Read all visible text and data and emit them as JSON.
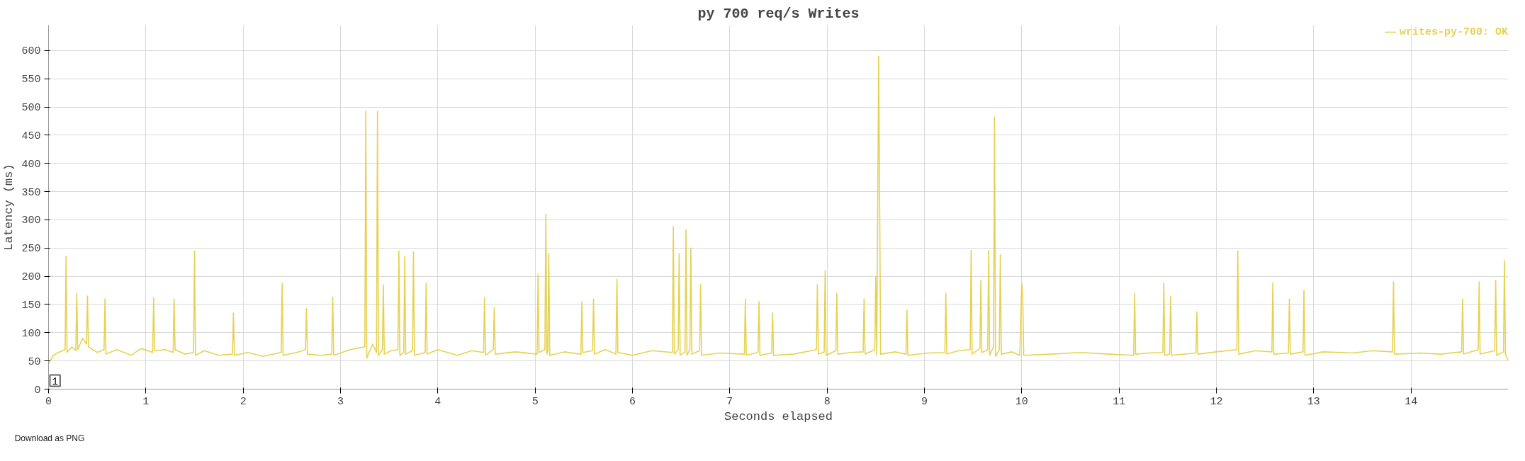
{
  "chart_data": {
    "type": "line",
    "title": "py 700 req/s Writes",
    "xlabel": "Seconds elapsed",
    "ylabel": "Latency (ms)",
    "xlim": [
      0,
      15
    ],
    "ylim": [
      0,
      645
    ],
    "xticks": [
      0,
      1,
      2,
      3,
      4,
      5,
      6,
      7,
      8,
      9,
      10,
      11,
      12,
      13,
      14
    ],
    "yticks": [
      0,
      50,
      100,
      150,
      200,
      250,
      300,
      350,
      400,
      450,
      500,
      550,
      600
    ],
    "grid": true,
    "legend": "top right",
    "line_style": "solid",
    "annotations": [
      "Download as PNG",
      "1"
    ],
    "series": [
      {
        "name": "writes-py-700: OK",
        "color": "#e6d252",
        "x": [
          0,
          0.05,
          0.1,
          0.17,
          0.18,
          0.19,
          0.24,
          0.28,
          0.29,
          0.3,
          0.35,
          0.39,
          0.4,
          0.41,
          0.5,
          0.57,
          0.58,
          0.59,
          0.7,
          0.85,
          0.95,
          1.07,
          1.08,
          1.09,
          1.2,
          1.28,
          1.29,
          1.3,
          1.4,
          1.49,
          1.5,
          1.51,
          1.6,
          1.75,
          1.89,
          1.9,
          1.91,
          2.05,
          2.2,
          2.39,
          2.4,
          2.41,
          2.55,
          2.64,
          2.65,
          2.66,
          2.8,
          2.91,
          2.92,
          2.93,
          3.1,
          3.25,
          3.26,
          3.27,
          3.33,
          3.37,
          3.38,
          3.39,
          3.43,
          3.44,
          3.45,
          3.52,
          3.59,
          3.6,
          3.61,
          3.65,
          3.66,
          3.67,
          3.74,
          3.75,
          3.76,
          3.87,
          3.88,
          3.89,
          4.0,
          4.2,
          4.35,
          4.47,
          4.48,
          4.49,
          4.57,
          4.58,
          4.59,
          4.8,
          5.02,
          5.03,
          5.04,
          5.1,
          5.11,
          5.12,
          5.13,
          5.14,
          5.15,
          5.3,
          5.47,
          5.48,
          5.49,
          5.59,
          5.6,
          5.61,
          5.72,
          5.83,
          5.84,
          5.85,
          6.0,
          6.2,
          6.41,
          6.42,
          6.43,
          6.47,
          6.48,
          6.49,
          6.54,
          6.55,
          6.56,
          6.59,
          6.6,
          6.61,
          6.69,
          6.7,
          6.71,
          6.9,
          7.15,
          7.16,
          7.17,
          7.29,
          7.3,
          7.31,
          7.43,
          7.44,
          7.45,
          7.65,
          7.89,
          7.9,
          7.91,
          7.97,
          7.98,
          7.99,
          8.09,
          8.1,
          8.11,
          8.25,
          8.37,
          8.38,
          8.39,
          8.49,
          8.5,
          8.51,
          8.53,
          8.55,
          8.7,
          8.81,
          8.82,
          8.83,
          9.05,
          9.21,
          9.22,
          9.23,
          9.35,
          9.47,
          9.48,
          9.49,
          9.57,
          9.58,
          9.59,
          9.65,
          9.66,
          9.67,
          9.71,
          9.72,
          9.73,
          9.77,
          9.78,
          9.79,
          9.9,
          9.98,
          10.0,
          10.01,
          10.02,
          10.3,
          10.6,
          10.9,
          11.15,
          11.16,
          11.17,
          11.3,
          11.45,
          11.46,
          11.47,
          11.52,
          11.53,
          11.54,
          11.79,
          11.8,
          11.81,
          12.0,
          12.21,
          12.22,
          12.23,
          12.4,
          12.57,
          12.58,
          12.59,
          12.74,
          12.75,
          12.76,
          12.89,
          12.9,
          12.91,
          13.1,
          13.4,
          13.6,
          13.81,
          13.82,
          13.83,
          14.1,
          14.3,
          14.52,
          14.53,
          14.54,
          14.69,
          14.7,
          14.71,
          14.86,
          14.87,
          14.88,
          14.95,
          14.96,
          14.97,
          15.0
        ],
        "values": [
          45,
          60,
          65,
          70,
          235,
          65,
          75,
          68,
          170,
          70,
          90,
          80,
          165,
          75,
          65,
          70,
          160,
          62,
          70,
          60,
          72,
          65,
          162,
          68,
          70,
          65,
          160,
          70,
          62,
          65,
          245,
          60,
          68,
          60,
          62,
          135,
          60,
          65,
          58,
          65,
          188,
          60,
          65,
          70,
          143,
          62,
          60,
          62,
          163,
          60,
          70,
          75,
          493,
          55,
          80,
          65,
          492,
          60,
          70,
          185,
          62,
          68,
          70,
          245,
          60,
          65,
          235,
          62,
          68,
          243,
          60,
          65,
          188,
          62,
          70,
          60,
          68,
          65,
          162,
          60,
          70,
          145,
          62,
          66,
          62,
          203,
          65,
          70,
          310,
          62,
          68,
          240,
          60,
          66,
          62,
          155,
          65,
          68,
          160,
          62,
          70,
          62,
          195,
          65,
          60,
          68,
          65,
          288,
          62,
          70,
          240,
          60,
          66,
          282,
          60,
          70,
          250,
          62,
          68,
          185,
          60,
          64,
          62,
          160,
          60,
          65,
          155,
          60,
          64,
          135,
          60,
          62,
          70,
          185,
          62,
          66,
          210,
          60,
          68,
          170,
          62,
          65,
          66,
          160,
          62,
          70,
          200,
          60,
          590,
          62,
          66,
          62,
          140,
          60,
          64,
          65,
          170,
          62,
          68,
          70,
          246,
          62,
          72,
          193,
          65,
          70,
          246,
          60,
          75,
          482,
          58,
          70,
          238,
          62,
          66,
          60,
          188,
          165,
          60,
          62,
          65,
          62,
          60,
          170,
          62,
          64,
          65,
          188,
          60,
          62,
          165,
          60,
          64,
          137,
          62,
          66,
          70,
          245,
          62,
          68,
          66,
          188,
          62,
          64,
          160,
          62,
          66,
          175,
          60,
          66,
          64,
          68,
          66,
          190,
          62,
          64,
          62,
          66,
          160,
          62,
          70,
          190,
          62,
          68,
          193,
          60,
          66,
          228,
          62,
          50
        ]
      }
    ]
  }
}
